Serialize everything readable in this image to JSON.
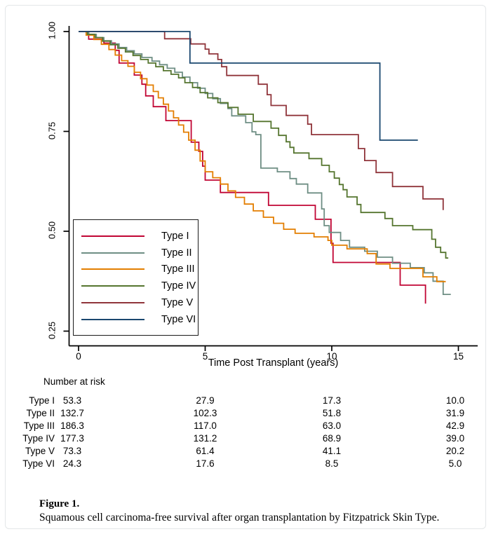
{
  "caption": {
    "label": "Figure 1.",
    "text": "Squamous cell carcinoma-free survival after organ transplantation by Fitzpatrick Skin Type."
  },
  "risk_table": {
    "title": "Number at risk",
    "time_points": [
      0,
      5,
      10,
      15
    ],
    "rows": [
      {
        "label": "Type I",
        "values": [
          "53.3",
          "27.9",
          "17.3",
          "10.0"
        ]
      },
      {
        "label": "Type II",
        "values": [
          "132.7",
          "102.3",
          "51.8",
          "31.9"
        ]
      },
      {
        "label": "Type III",
        "values": [
          "186.3",
          "117.0",
          "63.0",
          "42.9"
        ]
      },
      {
        "label": "Type IV",
        "values": [
          "177.3",
          "131.2",
          "68.9",
          "39.0"
        ]
      },
      {
        "label": "Type V",
        "values": [
          "73.3",
          "61.4",
          "41.1",
          "20.2"
        ]
      },
      {
        "label": "Type VI",
        "values": [
          "24.3",
          "17.6",
          "8.5",
          "5.0"
        ]
      }
    ]
  },
  "chart_data": {
    "type": "line",
    "subtype": "kaplan-meier-step",
    "title": "",
    "xlabel": "Time Post Transplant (years)",
    "ylabel": "",
    "xlim": [
      0,
      15.6
    ],
    "ylim": [
      0.22,
      1.02
    ],
    "grid": false,
    "legend_position": "inside-lower-left",
    "axis_color": "#000000",
    "x_ticks": [
      {
        "value": 0,
        "label": "0"
      },
      {
        "value": 5,
        "label": "5"
      },
      {
        "value": 10,
        "label": "10"
      },
      {
        "value": 15,
        "label": "15"
      }
    ],
    "y_ticks": [
      {
        "value": 1.0,
        "label": "1.00"
      },
      {
        "value": 0.75,
        "label": "0.75"
      },
      {
        "value": 0.5,
        "label": "0.50"
      },
      {
        "value": 0.25,
        "label": "0.25"
      }
    ],
    "series": [
      {
        "name": "Type I",
        "color": "#c10534",
        "start_value": 1.0,
        "end_time": 13.7,
        "drops": [
          [
            0.4,
            0.981
          ],
          [
            1.0,
            0.971
          ],
          [
            1.45,
            0.953
          ],
          [
            1.6,
            0.921
          ],
          [
            2.2,
            0.891
          ],
          [
            2.5,
            0.868
          ],
          [
            2.65,
            0.839
          ],
          [
            2.95,
            0.812
          ],
          [
            3.45,
            0.777
          ],
          [
            4.45,
            0.723
          ],
          [
            4.75,
            0.7
          ],
          [
            4.9,
            0.663
          ],
          [
            5.0,
            0.628
          ],
          [
            5.6,
            0.597
          ],
          [
            7.5,
            0.565
          ],
          [
            9.35,
            0.53
          ],
          [
            9.97,
            0.47
          ],
          [
            10.05,
            0.422
          ],
          [
            12.7,
            0.365
          ],
          [
            13.7,
            0.319
          ]
        ]
      },
      {
        "name": "Type II",
        "color": "#6e8e84",
        "start_value": 1.0,
        "end_time": 14.7,
        "drops": [
          [
            0.4,
            0.993
          ],
          [
            0.7,
            0.985
          ],
          [
            1.0,
            0.977
          ],
          [
            1.3,
            0.969
          ],
          [
            1.6,
            0.96
          ],
          [
            1.9,
            0.952
          ],
          [
            2.2,
            0.944
          ],
          [
            2.5,
            0.935
          ],
          [
            2.9,
            0.926
          ],
          [
            3.2,
            0.917
          ],
          [
            3.5,
            0.908
          ],
          [
            3.8,
            0.898
          ],
          [
            4.1,
            0.886
          ],
          [
            4.4,
            0.872
          ],
          [
            4.7,
            0.858
          ],
          [
            5.0,
            0.845
          ],
          [
            5.3,
            0.832
          ],
          [
            5.6,
            0.82
          ],
          [
            5.9,
            0.807
          ],
          [
            6.05,
            0.789
          ],
          [
            6.6,
            0.772
          ],
          [
            6.85,
            0.749
          ],
          [
            7.0,
            0.742
          ],
          [
            7.2,
            0.658
          ],
          [
            7.85,
            0.649
          ],
          [
            8.35,
            0.632
          ],
          [
            8.6,
            0.618
          ],
          [
            9.05,
            0.596
          ],
          [
            9.6,
            0.556
          ],
          [
            9.7,
            0.514
          ],
          [
            9.9,
            0.497
          ],
          [
            10.35,
            0.477
          ],
          [
            10.7,
            0.46
          ],
          [
            11.3,
            0.45
          ],
          [
            11.8,
            0.435
          ],
          [
            12.4,
            0.42
          ],
          [
            13.1,
            0.409
          ],
          [
            13.65,
            0.396
          ],
          [
            14.0,
            0.375
          ],
          [
            14.4,
            0.342
          ]
        ]
      },
      {
        "name": "Type III",
        "color": "#e37e00",
        "start_value": 1.0,
        "end_time": 14.5,
        "drops": [
          [
            0.3,
            0.991
          ],
          [
            0.6,
            0.98
          ],
          [
            0.9,
            0.968
          ],
          [
            1.2,
            0.955
          ],
          [
            1.45,
            0.941
          ],
          [
            1.7,
            0.927
          ],
          [
            1.95,
            0.913
          ],
          [
            2.2,
            0.898
          ],
          [
            2.45,
            0.882
          ],
          [
            2.7,
            0.866
          ],
          [
            2.95,
            0.85
          ],
          [
            3.15,
            0.834
          ],
          [
            3.35,
            0.818
          ],
          [
            3.55,
            0.801
          ],
          [
            3.75,
            0.784
          ],
          [
            3.95,
            0.766
          ],
          [
            4.15,
            0.748
          ],
          [
            4.35,
            0.728
          ],
          [
            4.6,
            0.703
          ],
          [
            4.8,
            0.676
          ],
          [
            5.0,
            0.649
          ],
          [
            5.3,
            0.634
          ],
          [
            5.6,
            0.618
          ],
          [
            5.9,
            0.601
          ],
          [
            6.2,
            0.585
          ],
          [
            6.55,
            0.568
          ],
          [
            6.9,
            0.551
          ],
          [
            7.3,
            0.535
          ],
          [
            7.7,
            0.52
          ],
          [
            8.1,
            0.505
          ],
          [
            8.55,
            0.495
          ],
          [
            9.3,
            0.486
          ],
          [
            9.85,
            0.477
          ],
          [
            10.0,
            0.465
          ],
          [
            10.6,
            0.456
          ],
          [
            11.4,
            0.444
          ],
          [
            11.75,
            0.418
          ],
          [
            12.3,
            0.407
          ],
          [
            13.6,
            0.386
          ],
          [
            14.15,
            0.374
          ]
        ]
      },
      {
        "name": "Type IV",
        "color": "#55752f",
        "start_value": 1.0,
        "end_time": 14.6,
        "drops": [
          [
            0.35,
            0.993
          ],
          [
            0.65,
            0.985
          ],
          [
            0.95,
            0.976
          ],
          [
            1.25,
            0.967
          ],
          [
            1.55,
            0.958
          ],
          [
            1.85,
            0.949
          ],
          [
            2.15,
            0.94
          ],
          [
            2.45,
            0.93
          ],
          [
            2.75,
            0.921
          ],
          [
            3.05,
            0.912
          ],
          [
            3.35,
            0.902
          ],
          [
            3.65,
            0.893
          ],
          [
            3.95,
            0.884
          ],
          [
            4.2,
            0.872
          ],
          [
            4.5,
            0.86
          ],
          [
            4.8,
            0.847
          ],
          [
            5.1,
            0.834
          ],
          [
            5.5,
            0.822
          ],
          [
            5.9,
            0.81
          ],
          [
            6.3,
            0.793
          ],
          [
            6.9,
            0.775
          ],
          [
            7.6,
            0.758
          ],
          [
            7.9,
            0.74
          ],
          [
            8.2,
            0.724
          ],
          [
            8.35,
            0.71
          ],
          [
            8.5,
            0.696
          ],
          [
            9.1,
            0.682
          ],
          [
            9.6,
            0.665
          ],
          [
            9.9,
            0.649
          ],
          [
            10.1,
            0.633
          ],
          [
            10.3,
            0.617
          ],
          [
            10.45,
            0.604
          ],
          [
            10.6,
            0.586
          ],
          [
            11.0,
            0.567
          ],
          [
            11.15,
            0.547
          ],
          [
            12.1,
            0.532
          ],
          [
            12.4,
            0.514
          ],
          [
            13.2,
            0.504
          ],
          [
            13.95,
            0.48
          ],
          [
            14.1,
            0.46
          ],
          [
            14.3,
            0.447
          ],
          [
            14.5,
            0.433
          ]
        ]
      },
      {
        "name": "Type V",
        "color": "#90353b",
        "start_value": 1.0,
        "end_time": 14.4,
        "drops": [
          [
            3.4,
            0.982
          ],
          [
            4.43,
            0.969
          ],
          [
            5.0,
            0.956
          ],
          [
            5.15,
            0.944
          ],
          [
            5.5,
            0.93
          ],
          [
            5.65,
            0.912
          ],
          [
            5.85,
            0.89
          ],
          [
            7.1,
            0.868
          ],
          [
            7.45,
            0.842
          ],
          [
            7.6,
            0.815
          ],
          [
            8.2,
            0.79
          ],
          [
            9.05,
            0.768
          ],
          [
            9.2,
            0.742
          ],
          [
            11.05,
            0.707
          ],
          [
            11.3,
            0.677
          ],
          [
            11.75,
            0.647
          ],
          [
            12.4,
            0.612
          ],
          [
            13.6,
            0.581
          ],
          [
            14.4,
            0.553
          ]
        ]
      },
      {
        "name": "Type VI",
        "color": "#1a476f",
        "start_value": 1.0,
        "end_time": 13.4,
        "drops": [
          [
            4.4,
            0.921
          ],
          [
            11.9,
            0.728
          ]
        ]
      }
    ]
  }
}
